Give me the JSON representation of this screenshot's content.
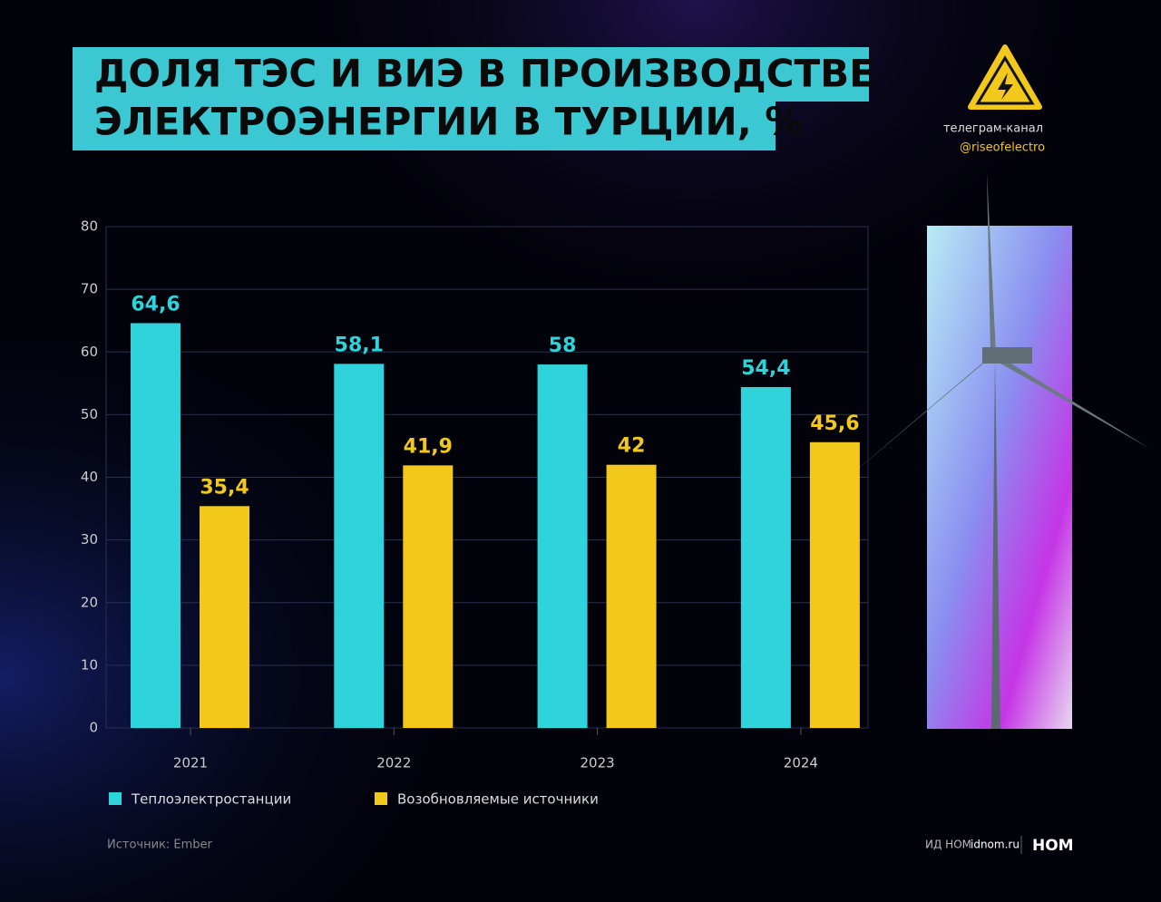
{
  "chart_data": {
    "type": "bar",
    "title": [
      "ДОЛЯ ТЭС И ВИЭ В ПРОИЗВОДСТВЕ",
      "ЭЛЕКТРОЭНЕРГИИ В ТУРЦИИ, %"
    ],
    "categories": [
      "2021",
      "2022",
      "2023",
      "2024"
    ],
    "series": [
      {
        "name": "Теплоэлектростанции",
        "color": "#2fd3dc",
        "values": [
          64.6,
          58.1,
          58,
          54.4
        ],
        "value_labels": [
          "64,6",
          "58,1",
          "58",
          "54,4"
        ]
      },
      {
        "name": "Возобновляемые источники",
        "color": "#f2c81b",
        "values": [
          35.4,
          41.9,
          42,
          45.6
        ],
        "value_labels": [
          "35,4",
          "41,9",
          "42",
          "45,6"
        ]
      }
    ],
    "ylim": [
      0,
      80
    ],
    "yticks": [
      0,
      10,
      20,
      30,
      40,
      50,
      60,
      70,
      80
    ],
    "grid": true,
    "channel_label": "телеграм-канал",
    "channel_handle": "@riseofelectro",
    "source": "Источник: Ember",
    "publisher": "ИД НОМ",
    "site": "idnom.ru",
    "logo": "НОМ"
  }
}
